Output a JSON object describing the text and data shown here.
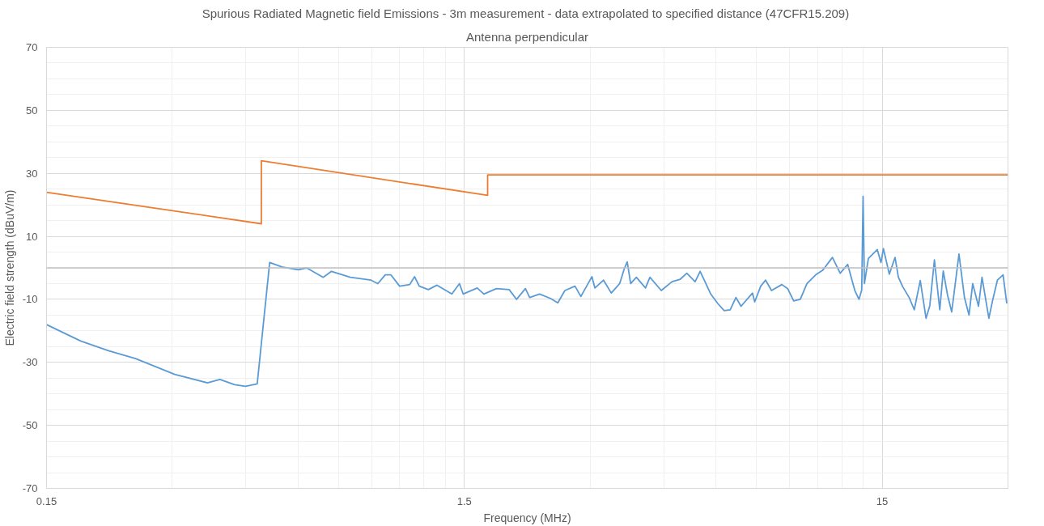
{
  "chart_data": {
    "type": "line",
    "title": "Spurious Radiated Magnetic field Emissions - 3m measurement -  data extrapolated to specified distance (47CFR15.209)",
    "subtitle": "Antenna perpendicular",
    "xlabel": "Frequency (MHz)",
    "ylabel": "Electric field strength (dBuV/m)",
    "log": "x",
    "xlim": [
      0.15,
      30
    ],
    "xticks": [
      0.15,
      1.5,
      15
    ],
    "ylim": [
      -70,
      70
    ],
    "yticks": [
      -70,
      -50,
      -30,
      -10,
      10,
      30,
      50,
      70
    ],
    "grid": true,
    "marker": "none",
    "line_style": "solid",
    "ref_lines": [
      {
        "axis": "y",
        "value": 0,
        "color": "#bfbfbf"
      }
    ],
    "series": [
      {
        "color": "#ed7d31",
        "x": [
          0.15,
          0.49,
          0.49,
          1.705,
          1.705,
          30
        ],
        "values": [
          24,
          14,
          34,
          23,
          29.5,
          29.5
        ]
      },
      {
        "color": "#5b9bd5",
        "x": [
          0.15,
          0.181,
          0.211,
          0.245,
          0.304,
          0.364,
          0.39,
          0.423,
          0.449,
          0.479,
          0.513,
          0.549,
          0.601,
          0.629,
          0.689,
          0.721,
          0.8,
          0.897,
          0.931,
          0.97,
          1.0,
          1.05,
          1.11,
          1.14,
          1.17,
          1.23,
          1.29,
          1.4,
          1.46,
          1.49,
          1.61,
          1.67,
          1.79,
          1.92,
          2.0,
          2.1,
          2.15,
          2.27,
          2.41,
          2.51,
          2.61,
          2.76,
          2.85,
          3.03,
          3.08,
          3.23,
          3.37,
          3.53,
          3.62,
          3.68,
          3.75,
          3.87,
          4.07,
          4.17,
          4.44,
          4.71,
          4.93,
          5.11,
          5.35,
          5.5,
          5.65,
          5.83,
          6.06,
          6.28,
          6.49,
          6.7,
          6.89,
          7.34,
          7.43,
          7.68,
          7.89,
          8.15,
          8.63,
          8.91,
          9.21,
          9.55,
          9.91,
          10.4,
          10.8,
          11.4,
          11.9,
          12.4,
          12.9,
          13.2,
          13.4,
          13.5,
          13.6,
          13.9,
          14.6,
          14.9,
          15.1,
          15.6,
          16.1,
          16.4,
          16.8,
          17.4,
          17.9,
          18.5,
          19.1,
          19.5,
          20.0,
          20.6,
          21.0,
          21.5,
          22.0,
          22.9,
          23.6,
          24.2,
          24.7,
          25.5,
          26.0,
          27.0,
          27.6,
          28.3,
          29.2,
          29.8
        ],
        "values": [
          -18,
          -23.2,
          -26.3,
          -28.8,
          -33.8,
          -36.5,
          -35.4,
          -37.1,
          -37.6,
          -36.8,
          1.7,
          0.3,
          -0.6,
          0,
          -3,
          -1.1,
          -3,
          -3.9,
          -5,
          -2.2,
          -2.2,
          -5.8,
          -5.3,
          -2.8,
          -5.8,
          -6.9,
          -5.5,
          -8.3,
          -5,
          -8.3,
          -6.4,
          -8.3,
          -6.6,
          -6.9,
          -10,
          -6.6,
          -9.4,
          -8.3,
          -9.7,
          -11.1,
          -7.2,
          -5.8,
          -9.1,
          -2.8,
          -6.4,
          -3.9,
          -8,
          -5,
          -0.3,
          1.9,
          -5,
          -3,
          -6.4,
          -3,
          -7.2,
          -4.4,
          -3.6,
          -1.7,
          -4.4,
          -1.1,
          -4.4,
          -8.3,
          -11.3,
          -13.6,
          -13.3,
          -9.4,
          -12.2,
          -8,
          -10.8,
          -5.8,
          -3.9,
          -7.2,
          -5.3,
          -6.6,
          -10.5,
          -10,
          -5,
          -2.2,
          -0.8,
          3.3,
          -1.7,
          1.1,
          -7.2,
          -10,
          -7,
          22.7,
          -5,
          3,
          5.8,
          1.7,
          6.1,
          -2,
          3.3,
          -3,
          -6,
          -9.4,
          -13.3,
          -4,
          -16,
          -12,
          2.5,
          -13.3,
          -1,
          -8.6,
          -14,
          4.4,
          -9.4,
          -15,
          -5,
          -12.2,
          -3,
          -16,
          -10,
          -3.9,
          -2.2,
          -11.3
        ]
      }
    ]
  }
}
